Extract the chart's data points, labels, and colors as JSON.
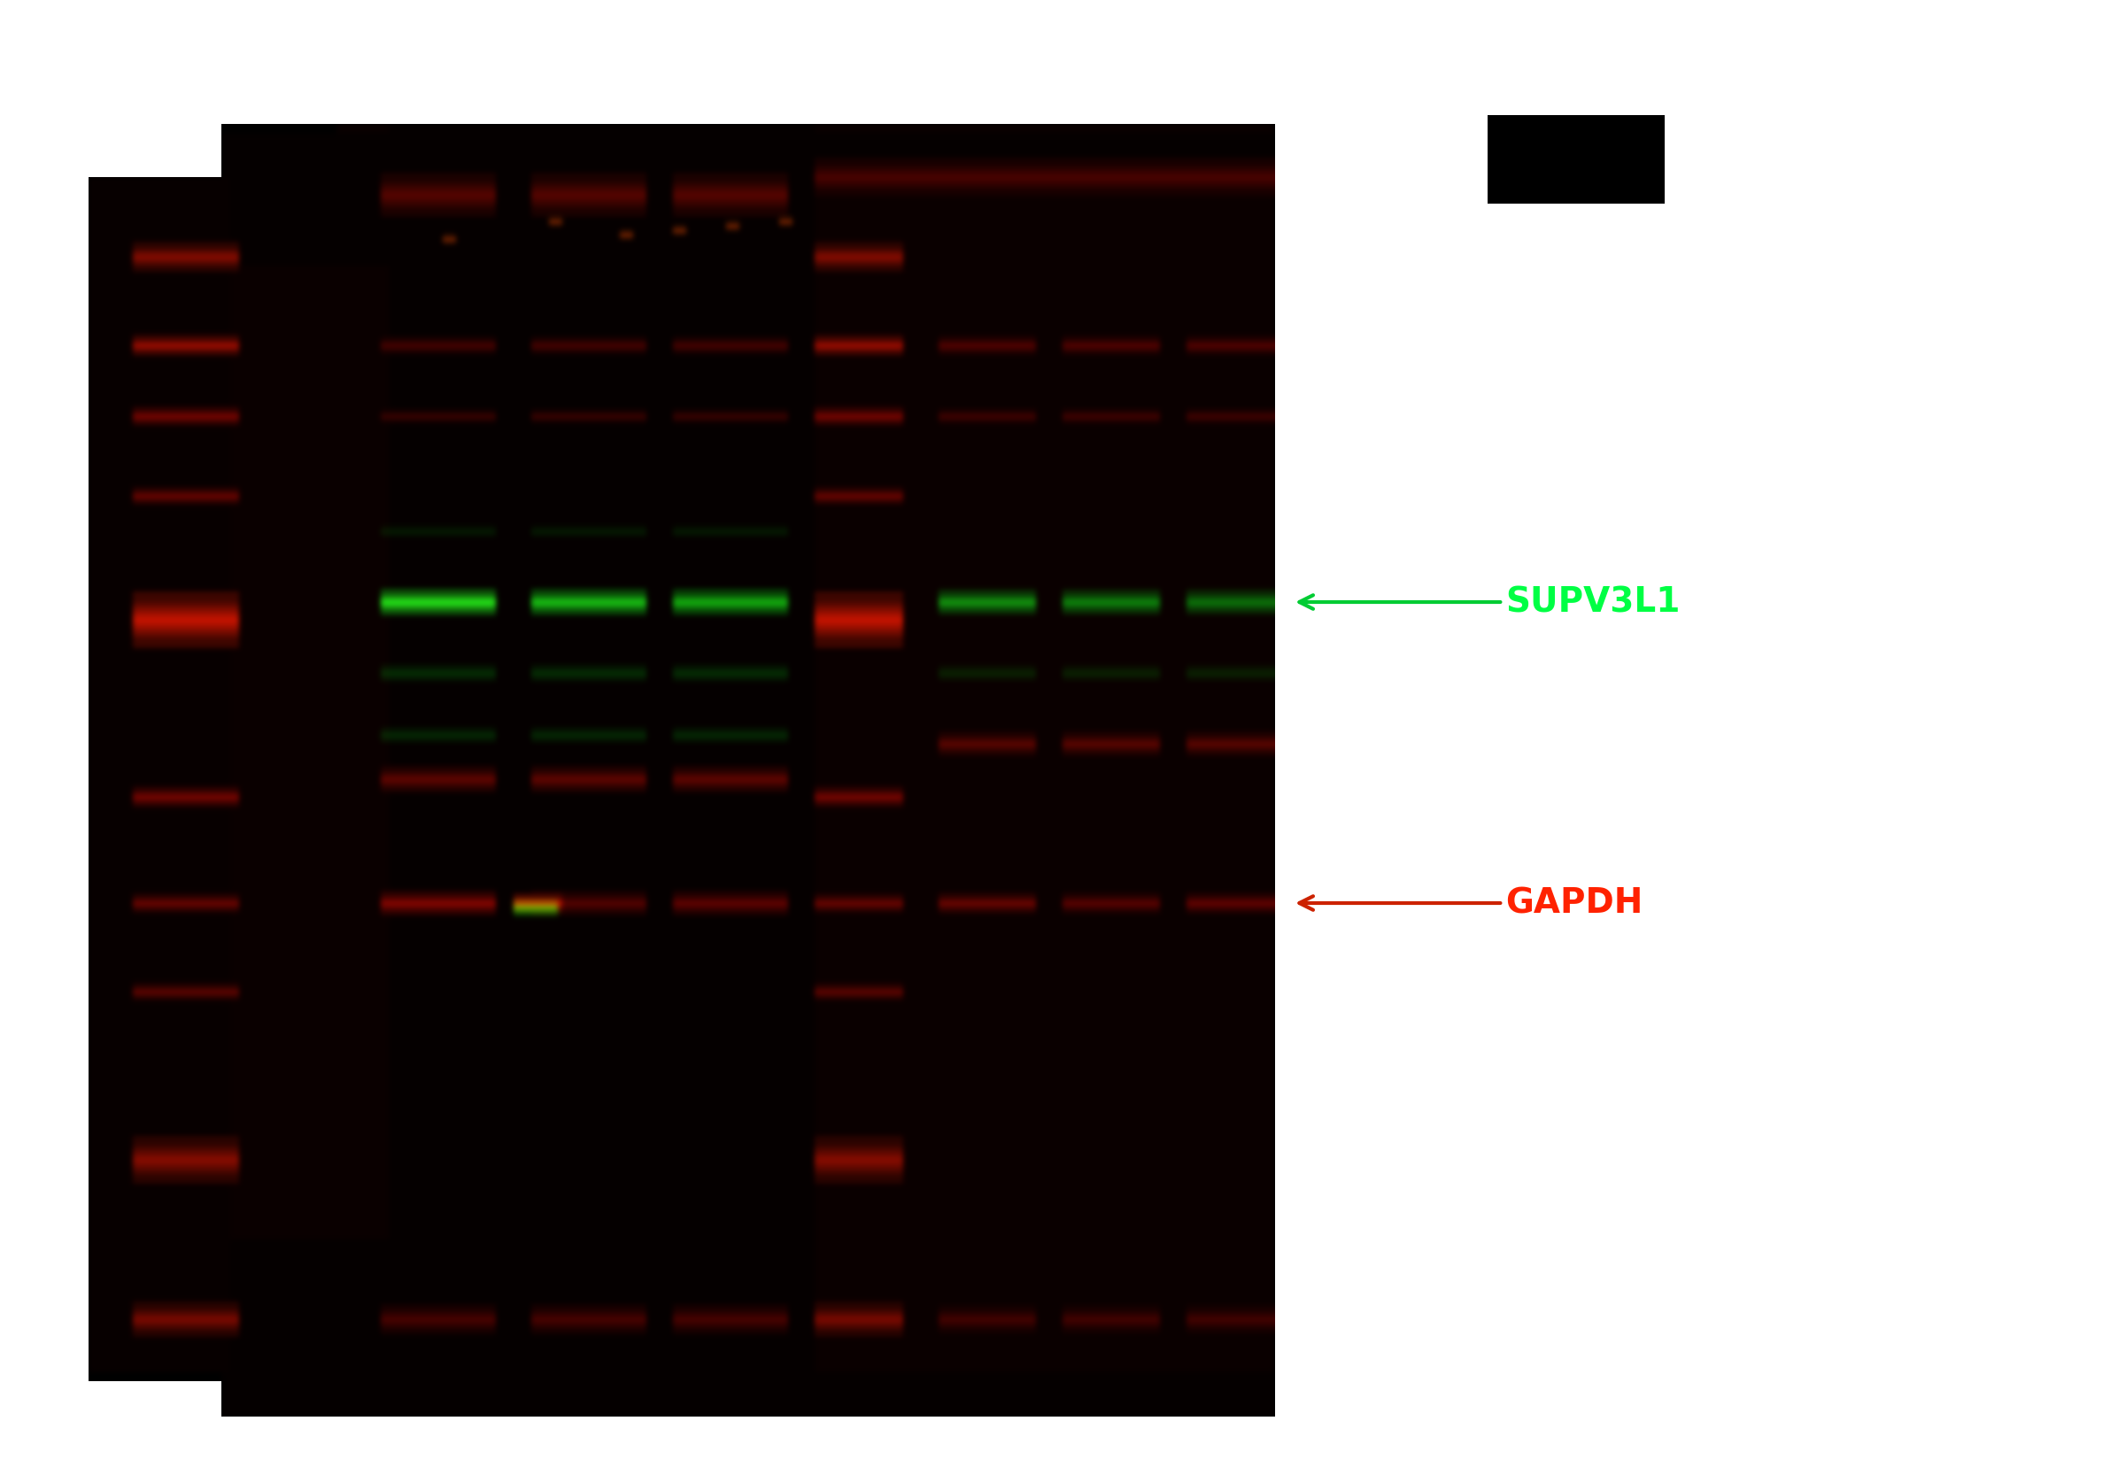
{
  "fig_width": 24.01,
  "fig_height": 16.66,
  "background_color": "white",
  "blot_bg": "#0a0000",
  "supv3l1_label": "SUPV3L1",
  "gapdh_label": "GAPDH",
  "supv3l1_color": "#00ff44",
  "gapdh_color": "#ff2200",
  "arrow_color_green": "#00cc33",
  "arrow_color_red": "#cc2200",
  "label_fontsize": 28,
  "label_fontweight": "bold"
}
